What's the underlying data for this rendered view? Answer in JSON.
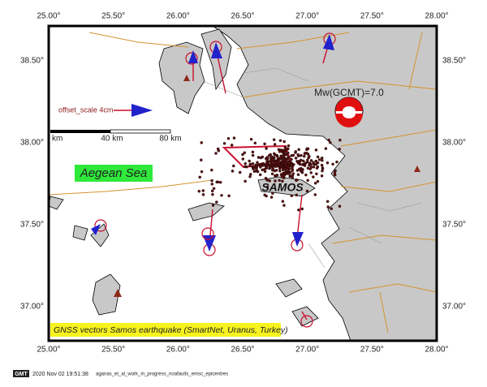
{
  "map": {
    "lon_labels": [
      "25.00°",
      "25.50°",
      "26.00°",
      "26.50°",
      "27.00°",
      "27.50°",
      "28.00°"
    ],
    "lat_labels": [
      "38.50°",
      "38.00°",
      "37.50°",
      "37.00°"
    ],
    "sea_label": "Aegean Sea",
    "island_label": "SAMOS",
    "magnitude_label": "Mw(GCMT)=7.0",
    "offset_scale_label": "offset_scale 4cm",
    "scale_bar": [
      "km",
      "40 km",
      "80 km"
    ],
    "caption": "GNSS vectors Samos earthquake (SmartNet, Uranus, Turkey)"
  },
  "footer": {
    "logo": "GMT",
    "timestamp": "2020 Nov 02 19:51:38",
    "filename": "aganas_et_al_work_in_progress_noafaults_emsc_epicentres"
  }
}
